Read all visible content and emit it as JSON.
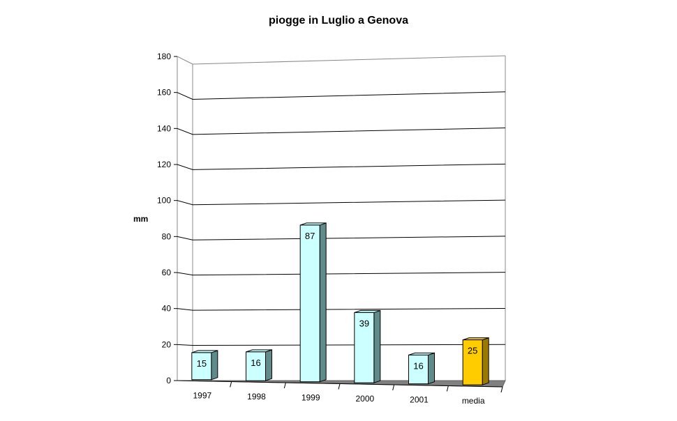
{
  "chart_data": {
    "type": "bar",
    "title": "piogge in Luglio a Genova",
    "xlabel": "",
    "ylabel": "mm",
    "categories": [
      "1997",
      "1998",
      "1999",
      "2000",
      "2001",
      "media"
    ],
    "values": [
      15,
      16,
      87,
      39,
      16,
      25
    ],
    "value_labels": [
      "15",
      "16",
      "87",
      "39",
      "16",
      "25"
    ],
    "ylim": [
      0,
      180
    ],
    "yticks": [
      "0",
      "20",
      "40",
      "60",
      "80",
      "100",
      "120",
      "140",
      "160",
      "180"
    ],
    "grid": true,
    "legend": "none",
    "colors": {
      "bar_fill": "#ccffff",
      "bar_side": "#5f8b8b",
      "highlight_fill": "#ffcc00",
      "highlight_side": "#9a7a00",
      "floor": "#808080"
    }
  }
}
